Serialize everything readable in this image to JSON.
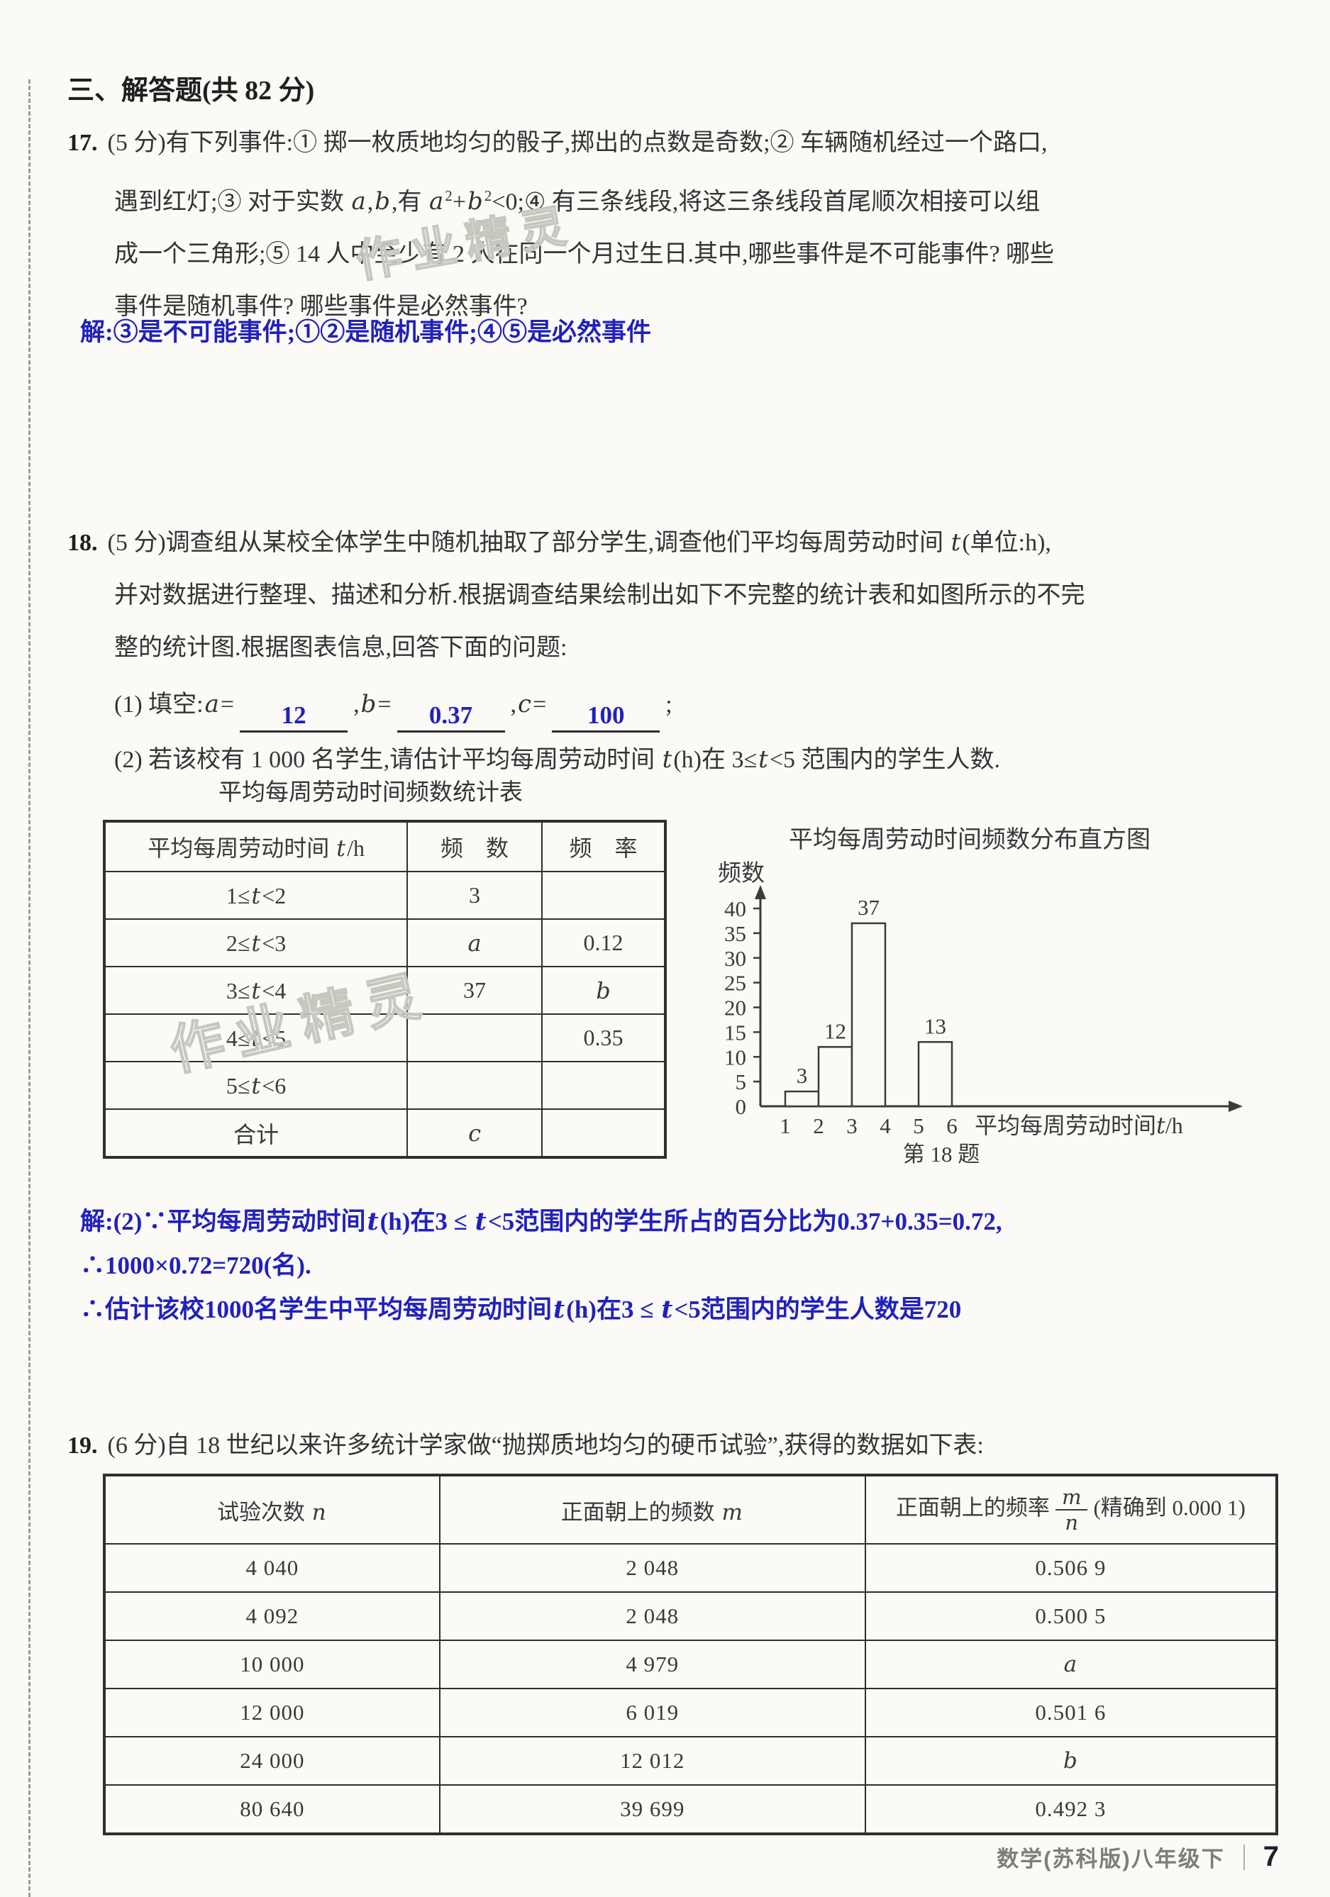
{
  "page": {
    "section_heading": "三、解答题(共 82 分)",
    "watermark": "作业精灵",
    "footer": {
      "book": "数学(苏科版)八年级下",
      "page_number": "7"
    }
  },
  "q17": {
    "number": "17.",
    "lines": [
      "(5 分)有下列事件:① 掷一枚质地均匀的骰子,掷出的点数是奇数;② 车辆随机经过一个路口,",
      "遇到红灯;③ 对于实数 *a*,*b*,有 *a*^2^+*b*^2^<0;④ 有三条线段,将这三条线段首尾顺次相接可以组",
      "成一个三角形;⑤ 14 人中至少有 2 人在同一个月过生日.其中,哪些事件是不可能事件? 哪些",
      "事件是随机事件? 哪些事件是必然事件?"
    ],
    "answer": "解:③是不可能事件;①②是随机事件;④⑤是必然事件"
  },
  "q18": {
    "number": "18.",
    "lines": [
      "(5 分)调查组从某校全体学生中随机抽取了部分学生,调查他们平均每周劳动时间 *t*(单位:h),",
      "并对数据进行整理、描述和分析.根据调查结果绘制出如下不完整的统计表和如图所示的不完",
      "整的统计图.根据图表信息,回答下面的问题:"
    ],
    "part1": {
      "prefix": "(1) 填空:",
      "a_label": "*a*=",
      "a_value": "12",
      "b_label": ",*b*=",
      "b_value": "0.37",
      "c_label": ",*c*=",
      "c_value": "100",
      "suffix": ";"
    },
    "part2": "(2) 若该校有 1 000 名学生,请估计平均每周劳动时间 *t*(h)在 3≤*t*<5 范围内的学生人数.",
    "table": {
      "title": "平均每周劳动时间频数统计表",
      "headers": [
        "平均每周劳动时间 *t*/h",
        "频　数",
        "频　率"
      ],
      "rows": [
        [
          "1≤*t*<2",
          "3",
          ""
        ],
        [
          "2≤*t*<3",
          "*a*",
          "0.12"
        ],
        [
          "3≤*t*<4",
          "37",
          "*b*"
        ],
        [
          "4≤*t*<5",
          "",
          "0.35"
        ],
        [
          "5≤*t*<6",
          "",
          ""
        ],
        [
          "合计",
          "*c*",
          ""
        ]
      ]
    },
    "solution_lines": [
      "解:(2)∵平均每周劳动时间*t*(h)在3 ≤ *t*<5范围内的学生所占的百分比为0.37+0.35=0.72,",
      "∴1000×0.72=720(名).",
      "∴估计该校1000名学生中平均每周劳动时间*t*(h)在3 ≤ *t*<5范围内的学生人数是720"
    ]
  },
  "chart_data": {
    "type": "bar",
    "title": "平均每周劳动时间频数分布直方图",
    "ylabel": "频数",
    "xlabel": "平均每周劳动时间*t*/h",
    "caption": "第 18 题",
    "x_ticks": [
      1,
      2,
      3,
      4,
      5,
      6
    ],
    "y_ticks": [
      0,
      5,
      10,
      15,
      20,
      25,
      30,
      35,
      40
    ],
    "ylim": [
      0,
      42
    ],
    "grid": false,
    "bars": [
      {
        "range": [
          1,
          2
        ],
        "value": 3
      },
      {
        "range": [
          2,
          3
        ],
        "value": 12
      },
      {
        "range": [
          3,
          4
        ],
        "value": 37
      },
      {
        "range": [
          5,
          6
        ],
        "value": 13
      }
    ]
  },
  "q19": {
    "number": "19.",
    "line": "(6 分)自 18 世纪以来许多统计学家做“抛掷质地均匀的硬币试验”,获得的数据如下表:",
    "table": {
      "header_n": "试验次数 *n*",
      "header_m": "正面朝上的频数 *m*",
      "header_freq_prefix": "正面朝上的频率",
      "header_frac_num": "m",
      "header_frac_den": "n",
      "header_freq_suffix": "(精确到 0.000 1)",
      "rows": [
        [
          "4 040",
          "2 048",
          "0.506 9"
        ],
        [
          "4 092",
          "2 048",
          "0.500 5"
        ],
        [
          "10 000",
          "4 979",
          "*a*"
        ],
        [
          "12 000",
          "6 019",
          "0.501 6"
        ],
        [
          "24 000",
          "12 012",
          "*b*"
        ],
        [
          "80 640",
          "39 699",
          "0.492 3"
        ]
      ]
    }
  }
}
